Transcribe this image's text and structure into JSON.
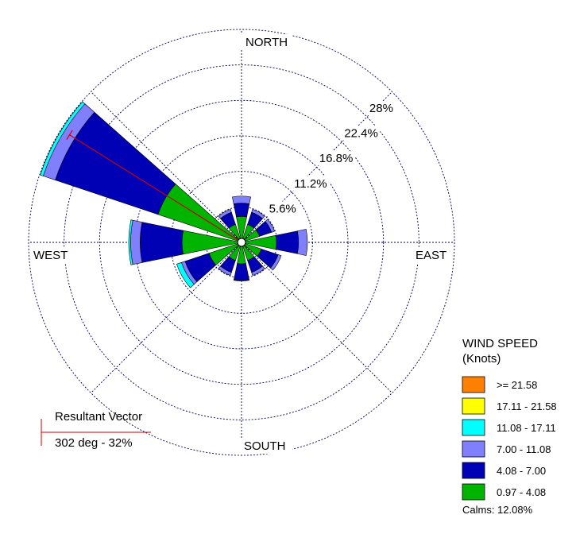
{
  "chart_data": {
    "type": "windrose",
    "directions_deg": [
      0,
      30,
      60,
      90,
      120,
      150,
      180,
      210,
      240,
      270,
      300,
      330
    ],
    "speed_bins": [
      {
        "label": "0.97 - 4.08",
        "color": "#00b400"
      },
      {
        "label": "4.08 - 7.00",
        "color": "#0000b4"
      },
      {
        "label": "7.00 - 11.08",
        "color": "#8080ff"
      },
      {
        "label": "11.08 - 17.11",
        "color": "#00ffff"
      },
      {
        "label": "17.11 - 21.58",
        "color": "#ffff00"
      },
      {
        "label": ">= 21.58",
        "color": "#ff8000"
      }
    ],
    "petals": [
      {
        "direction": 0,
        "cumulative": [
          4.1,
          6.2,
          7.3
        ]
      },
      {
        "direction": 30,
        "cumulative": [
          3.0,
          5.0,
          5.5
        ]
      },
      {
        "direction": 60,
        "cumulative": [
          3.0,
          5.0,
          5.5
        ]
      },
      {
        "direction": 90,
        "cumulative": [
          5.5,
          9.0,
          10.4
        ]
      },
      {
        "direction": 120,
        "cumulative": [
          3.3,
          6.1,
          6.6
        ]
      },
      {
        "direction": 150,
        "cumulative": [
          3.0,
          5.0,
          5.5
        ]
      },
      {
        "direction": 180,
        "cumulative": [
          3.4,
          6.0,
          6.1
        ]
      },
      {
        "direction": 210,
        "cumulative": [
          3.0,
          5.0,
          5.5
        ]
      },
      {
        "direction": 240,
        "cumulative": [
          5.4,
          9.4,
          10.0,
          10.8
        ]
      },
      {
        "direction": 270,
        "cumulative": [
          9.4,
          16.0,
          17.5,
          17.8
        ]
      },
      {
        "direction": 300,
        "cumulative": [
          13.9,
          31.0,
          33.0,
          33.5
        ]
      },
      {
        "direction": 330,
        "cumulative": [
          3.0,
          5.0,
          5.5
        ]
      }
    ],
    "ring_values": [
      5.6,
      11.2,
      16.8,
      22.4,
      28
    ],
    "ring_labels": [
      "5.6%",
      "11.2%",
      "16.8%",
      "22.4%",
      "28%"
    ],
    "outer_ring_value": 33.6,
    "axis_labels": {
      "north": "NORTH",
      "south": "SOUTH",
      "east": "EAST",
      "west": "WEST"
    },
    "resultant_vector": {
      "direction_deg": 302,
      "percent": 32
    },
    "accent_color": "#cc0000"
  },
  "legend": {
    "title_line1": "WIND SPEED",
    "title_line2": "(Knots)",
    "items": [
      {
        "label": ">= 21.58",
        "color": "#ff8000"
      },
      {
        "label": "17.11 - 21.58",
        "color": "#ffff00"
      },
      {
        "label": "11.08 - 17.11",
        "color": "#00ffff"
      },
      {
        "label": "7.00 - 11.08",
        "color": "#8080ff"
      },
      {
        "label": "4.08 - 7.00",
        "color": "#0000b4"
      },
      {
        "label": "0.97 - 4.08",
        "color": "#00b400"
      }
    ],
    "calms": "Calms: 12.08%"
  },
  "resultant_box": {
    "title": "Resultant Vector",
    "value": "302 deg - 32%"
  }
}
